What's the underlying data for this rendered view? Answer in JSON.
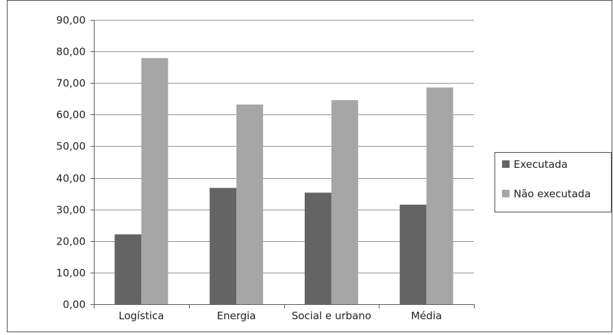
{
  "chart_data": {
    "type": "bar",
    "title": "",
    "xlabel": "",
    "ylabel": "",
    "categories": [
      "Logística",
      "Energia",
      "Social e urbano",
      "Média"
    ],
    "series": [
      {
        "name": "Executada",
        "values": [
          22.1,
          36.8,
          35.3,
          31.5
        ],
        "color": "#646464"
      },
      {
        "name": "Não executada",
        "values": [
          77.9,
          63.2,
          64.6,
          68.6
        ],
        "color": "#a6a6a7"
      }
    ],
    "ylim": [
      0,
      90
    ],
    "yticks": [
      "0,00",
      "10,00",
      "20,00",
      "30,00",
      "40,00",
      "50,00",
      "60,00",
      "70,00",
      "80,00",
      "90,00"
    ],
    "grid": true,
    "legend_position": "right"
  }
}
